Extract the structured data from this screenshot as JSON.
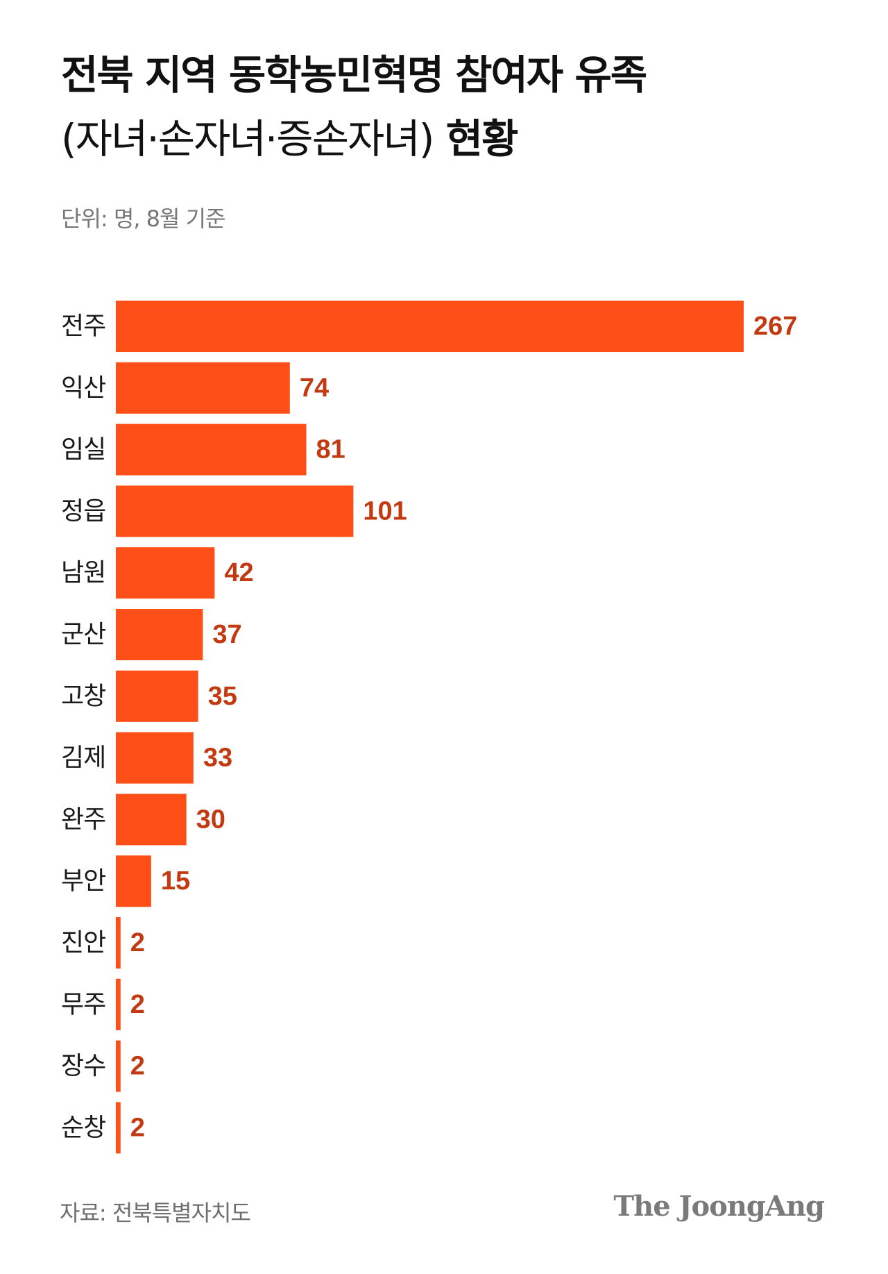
{
  "title": {
    "line1": "전북 지역 동학농민혁명 참여자 유족",
    "line2_light": "(자녀·손자녀·증손자녀)",
    "line2_bold": "현황"
  },
  "unit_note": "단위: 명, 8월 기준",
  "source": "자료: 전북특별자치도",
  "logo": "The JoongAng",
  "colors": {
    "bar": "#ff4f19",
    "value_label": "#c23a12",
    "category_label": "#1a1a1a"
  },
  "chart_data": {
    "type": "bar",
    "orientation": "horizontal",
    "categories": [
      "전주",
      "익산",
      "임실",
      "정읍",
      "남원",
      "군산",
      "고창",
      "김제",
      "완주",
      "부안",
      "진안",
      "무주",
      "장수",
      "순창"
    ],
    "values": [
      267,
      74,
      81,
      101,
      42,
      37,
      35,
      33,
      30,
      15,
      2,
      2,
      2,
      2
    ],
    "xlim": [
      0,
      267
    ],
    "grid": false,
    "legend": false
  }
}
